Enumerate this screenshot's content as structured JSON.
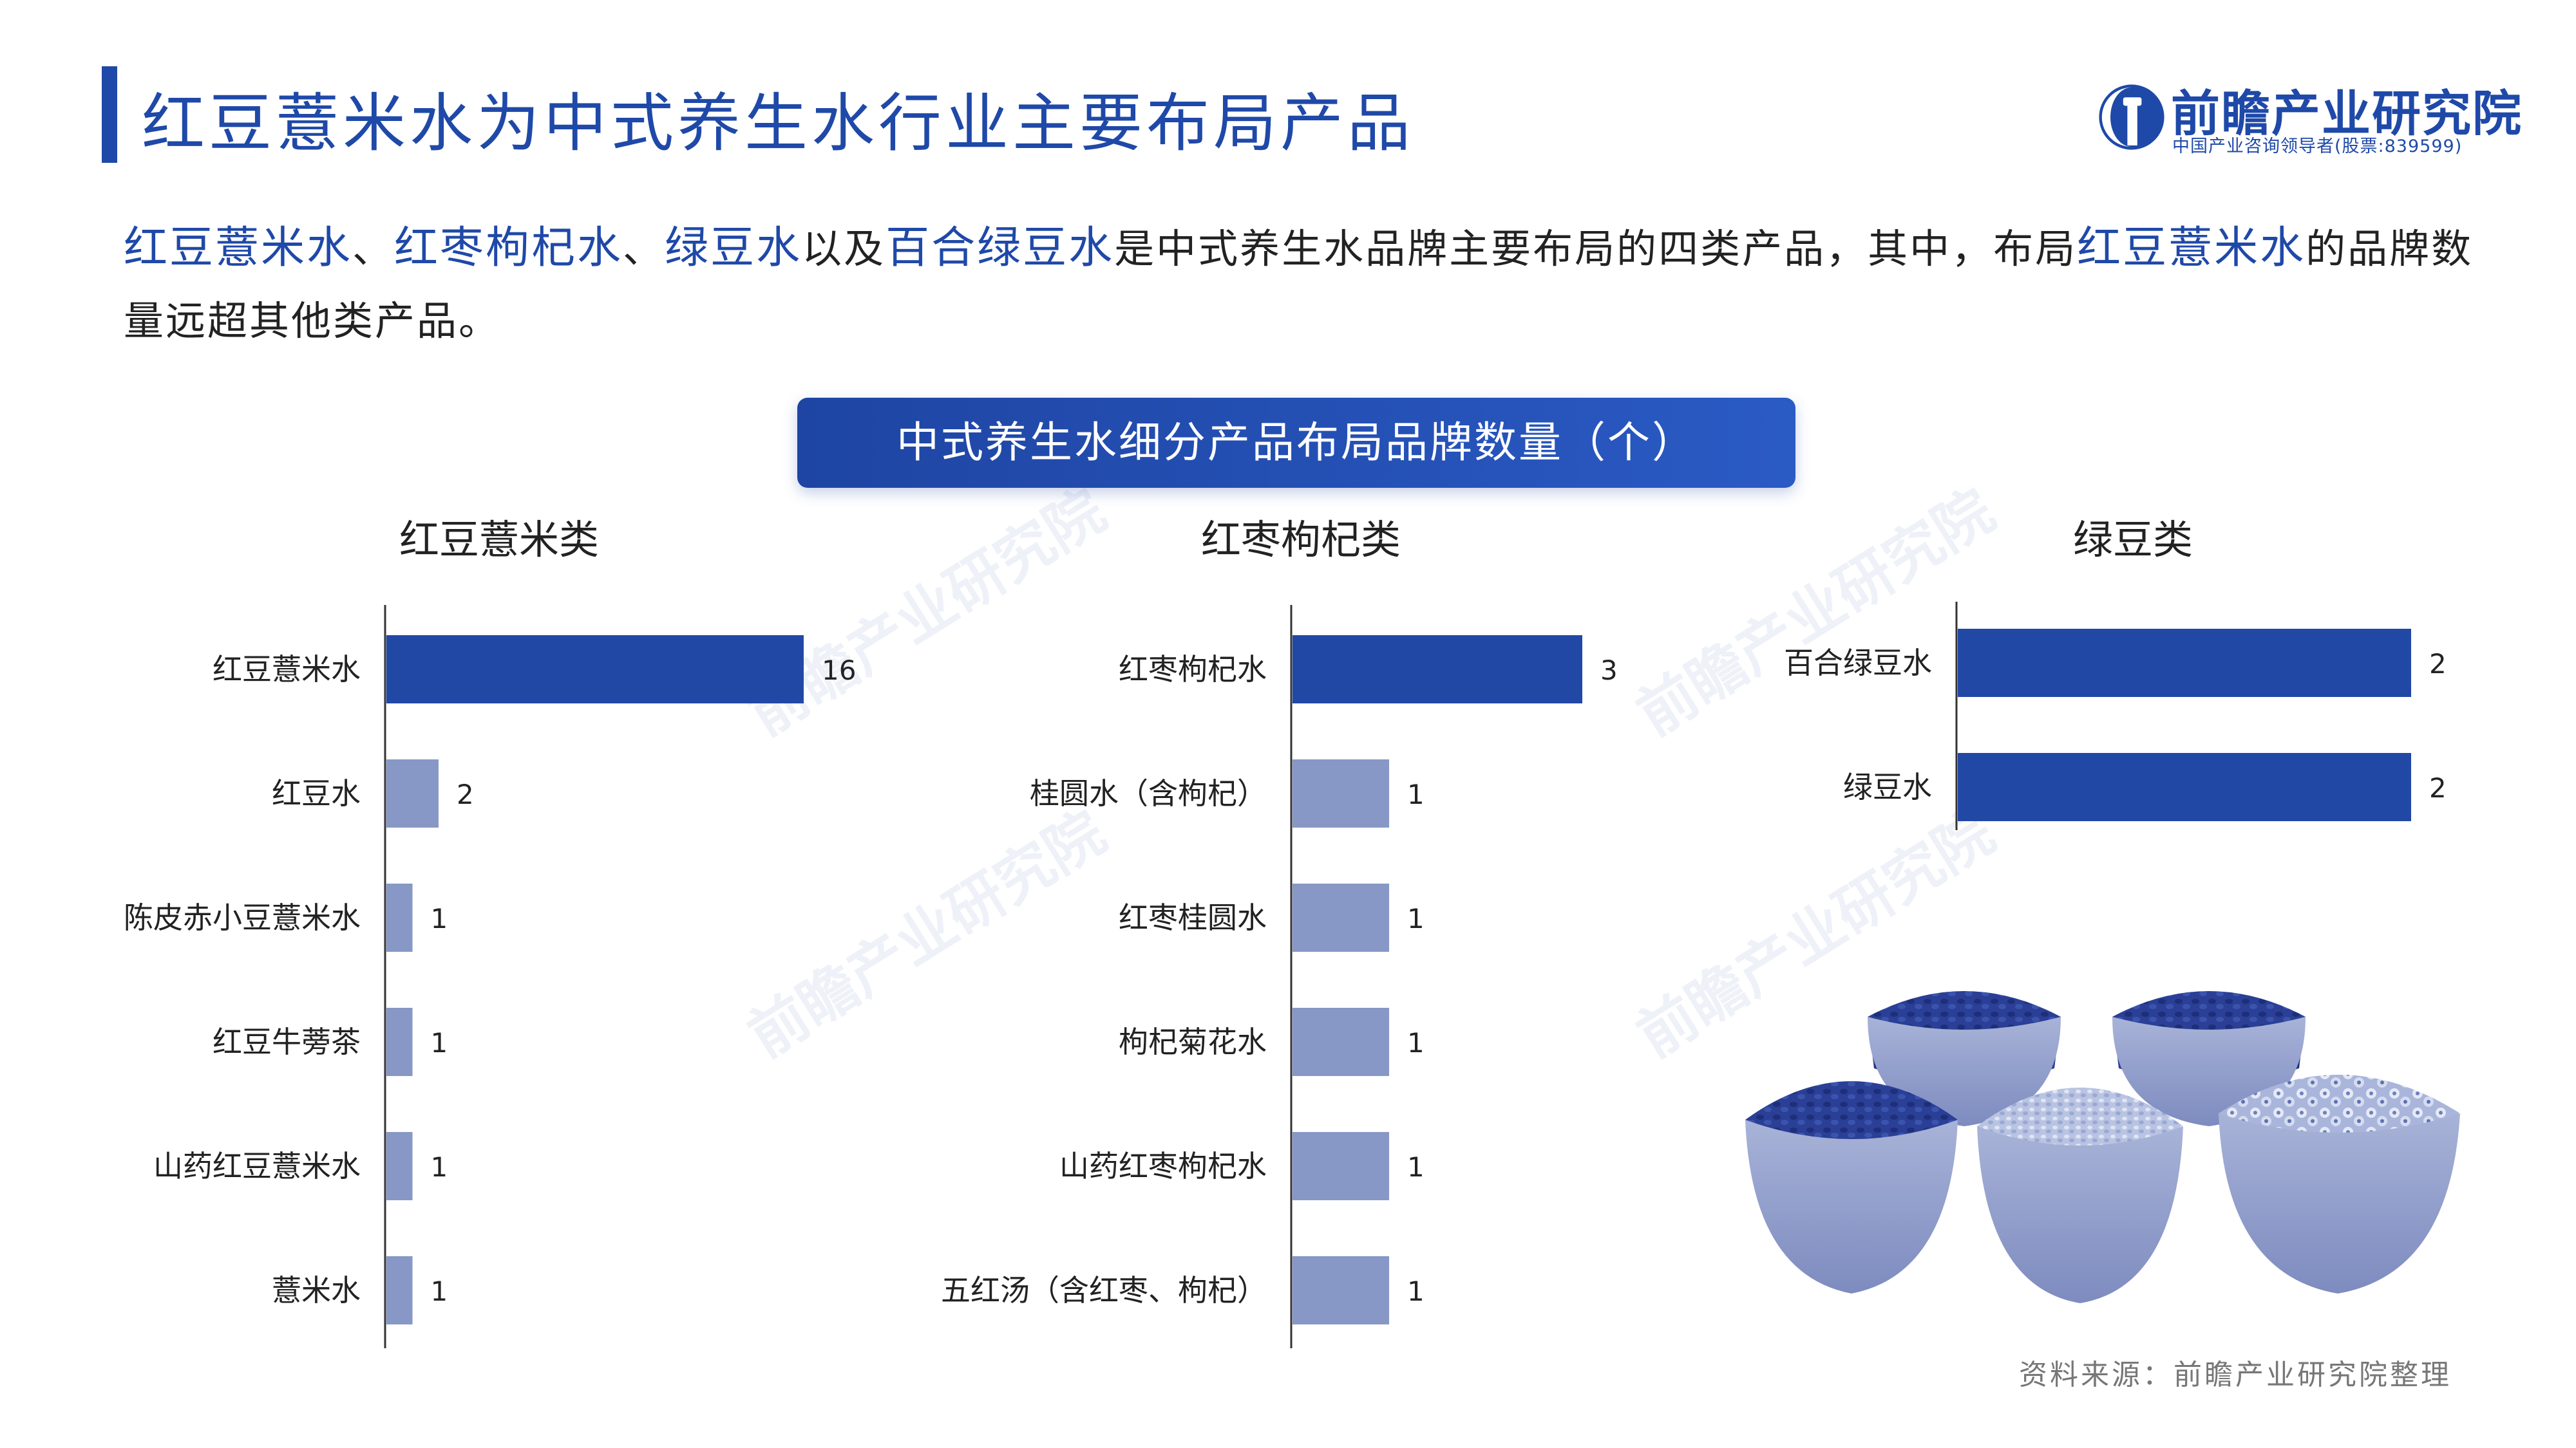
{
  "page": {
    "title": "红豆薏米水为中式养生水行业主要布局产品",
    "logo_name": "前瞻产业研究院",
    "logo_sub": "中国产业咨询领导者(股票:839599)",
    "summary": [
      {
        "t": "红豆薏米水",
        "hl": true
      },
      {
        "t": "、",
        "hl": false
      },
      {
        "t": "红枣枸杞水",
        "hl": true
      },
      {
        "t": "、",
        "hl": false
      },
      {
        "t": "绿豆水",
        "hl": true
      },
      {
        "t": "以及",
        "hl": false
      },
      {
        "t": "百合绿豆水",
        "hl": true
      },
      {
        "t": "是中式养生水品牌主要布局的四类产品，其中，布局",
        "hl": false
      },
      {
        "t": "红豆薏米水",
        "hl": true
      },
      {
        "t": "的品牌数量远超其他类产品。",
        "hl": false
      }
    ],
    "chart_header": "中式养生水细分产品布局品牌数量（个）",
    "source": "资料来源：前瞻产业研究院整理"
  },
  "colors": {
    "accent": "#1f49a8",
    "primary_bar": "#2248a6",
    "secondary_bar": "#8797c6"
  },
  "chart_data": [
    {
      "type": "bar",
      "orientation": "horizontal",
      "title": "红豆薏米类",
      "categories": [
        "红豆薏米水",
        "红豆水",
        "陈皮赤小豆薏米水",
        "红豆牛蒡茶",
        "山药红豆薏米水",
        "薏米水"
      ],
      "values": [
        16,
        2,
        1,
        1,
        1,
        1
      ],
      "highlight_index": 0
    },
    {
      "type": "bar",
      "orientation": "horizontal",
      "title": "红枣枸杞类",
      "categories": [
        "红枣枸杞水",
        "桂圆水（含枸杞）",
        "红枣桂圆水",
        "枸杞菊花水",
        "山药红枣枸杞水",
        "五红汤（含红枣、枸杞）"
      ],
      "values": [
        3,
        1,
        1,
        1,
        1,
        1
      ],
      "highlight_index": 0
    },
    {
      "type": "bar",
      "orientation": "horizontal",
      "title": "绿豆类",
      "categories": [
        "百合绿豆水",
        "绿豆水"
      ],
      "values": [
        2,
        2
      ],
      "highlight_index": -1
    }
  ]
}
